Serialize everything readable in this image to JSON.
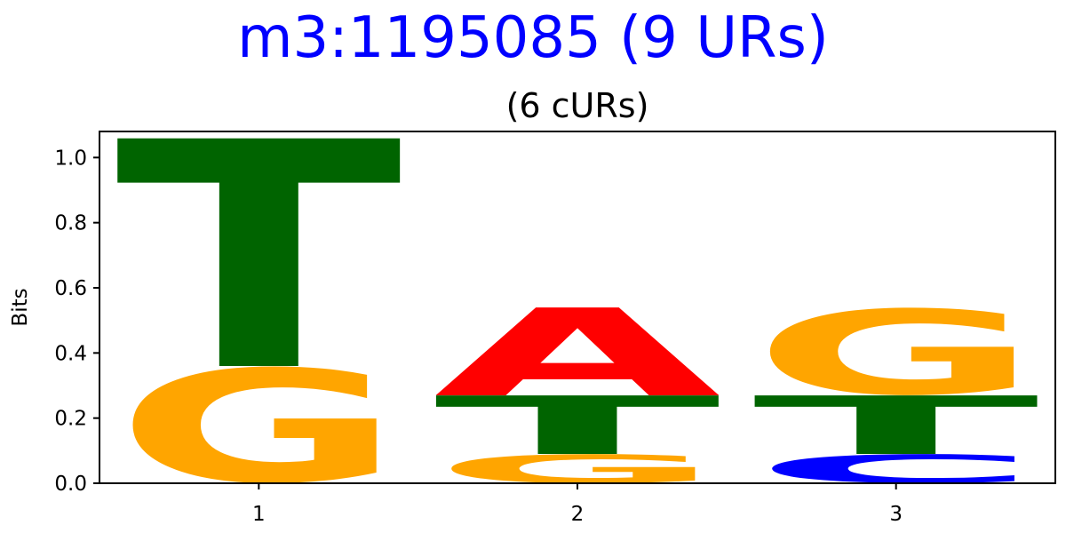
{
  "title": "m3:1195085 (9 URs)",
  "subtitle": "(6 cURs)",
  "chart_data": {
    "type": "sequence-logo",
    "ylabel": "Bits",
    "ylim": [
      0,
      1.08
    ],
    "yticks": [
      "0.0",
      "0.2",
      "0.4",
      "0.6",
      "0.8",
      "1.0"
    ],
    "ytick_values": [
      0,
      0.2,
      0.4,
      0.6,
      0.8,
      1.0
    ],
    "categories": [
      "1",
      "2",
      "3"
    ],
    "positions": [
      {
        "label": "1",
        "stack": [
          {
            "letter": "G",
            "bottom": 0.0,
            "top": 0.36
          },
          {
            "letter": "T",
            "bottom": 0.36,
            "top": 1.06
          }
        ]
      },
      {
        "label": "2",
        "stack": [
          {
            "letter": "G",
            "bottom": 0.0,
            "top": 0.09
          },
          {
            "letter": "T",
            "bottom": 0.09,
            "top": 0.27
          },
          {
            "letter": "A",
            "bottom": 0.27,
            "top": 0.54
          }
        ]
      },
      {
        "label": "3",
        "stack": [
          {
            "letter": "C",
            "bottom": 0.0,
            "top": 0.09
          },
          {
            "letter": "T",
            "bottom": 0.09,
            "top": 0.27
          },
          {
            "letter": "G",
            "bottom": 0.27,
            "top": 0.54
          }
        ]
      }
    ],
    "colors": {
      "A": "#ff0000",
      "C": "#0000ff",
      "G": "#ffa500",
      "T": "#006400"
    }
  }
}
